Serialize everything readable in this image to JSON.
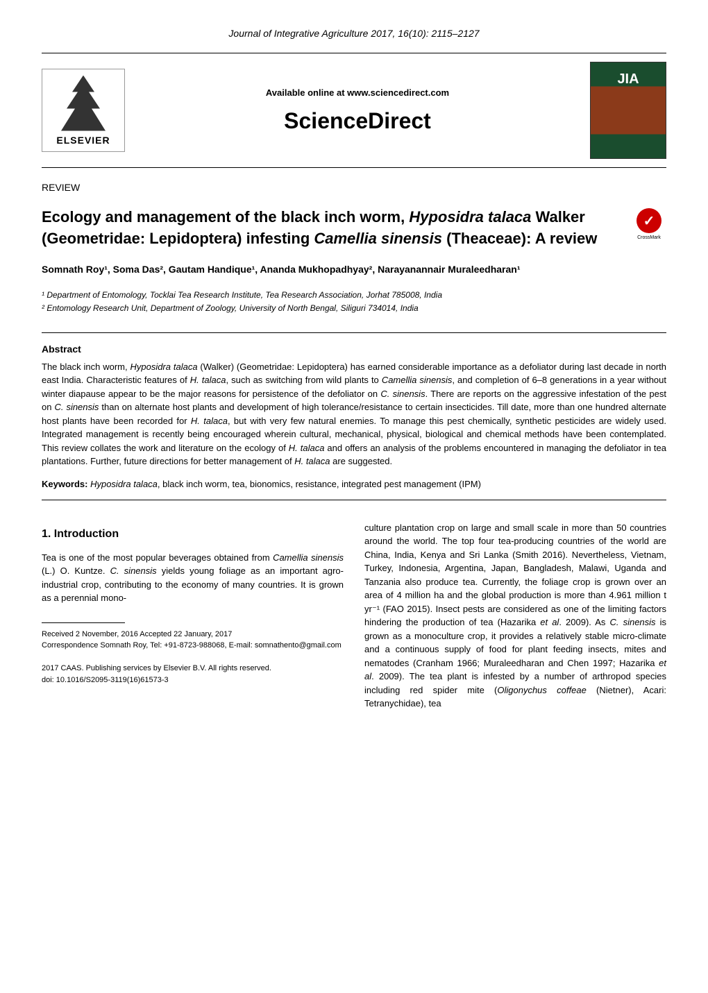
{
  "journal_header": "Journal of Integrative Agriculture  2017, 16(10): 2115–2127",
  "header": {
    "elsevier": "ELSEVIER",
    "available_online": "Available online at www.sciencedirect.com",
    "sciencedirect": "ScienceDirect",
    "jia": "JIA"
  },
  "review_label": "REVIEW",
  "title_parts": {
    "p1": "Ecology and management of the black inch worm, ",
    "p2": "Hyposidra talaca",
    "p3": " Walker (Geometridae: Lepidoptera) infesting ",
    "p4": "Camellia sinensis",
    "p5": " (Theaceae): A review"
  },
  "crossmark_label": "CrossMark",
  "authors": "Somnath Roy¹, Soma Das², Gautam Handique¹, Ananda Mukhopadhyay², Narayanannair Muraleedharan¹",
  "affiliations": {
    "a1": "¹ Department of Entomology, Tocklai Tea Research Institute, Tea Research Association, Jorhat 785008, India",
    "a2": "² Entomology Research Unit, Department of Zoology, University of North Bengal, Siliguri 734014, India"
  },
  "abstract": {
    "label": "Abstract",
    "text_parts": {
      "p1": "The black inch worm, ",
      "p2": "Hyposidra talaca",
      "p3": " (Walker) (Geometridae: Lepidoptera) has earned considerable importance as a defoliator during last decade in north east India. Characteristic features of ",
      "p4": "H. talaca",
      "p5": ", such as switching from wild plants to ",
      "p6": "Camellia sinensis",
      "p7": ", and completion of 6–8 generations in a year without winter diapause appear to be the major reasons for persistence of the defoliator on ",
      "p8": "C. sinensis",
      "p9": ". There are reports on the aggressive infestation of the pest on ",
      "p10": "C. sinensis",
      "p11": " than on alternate host plants and development of high tolerance/resistance to certain insecticides. Till date, more than one hundred alternate host plants have been recorded for ",
      "p12": "H. talaca",
      "p13": ", but with very few natural enemies. To manage this pest chemically, synthetic pesticides are widely used. Integrated management is recently being encouraged wherein cultural, mechanical, physical, biological and chemical methods have been contemplated. This review collates the work and literature on the ecology of ",
      "p14": "H. talaca",
      "p15": " and offers an analysis of the problems encountered in managing the defoliator in tea plantations. Further, future directions for better management of ",
      "p16": "H. talaca",
      "p17": " are suggested."
    }
  },
  "keywords": {
    "label": "Keywords: ",
    "text": "Hyposidra talaca",
    "text2": ", black inch worm, tea, bionomics, resistance, integrated pest management (IPM)"
  },
  "section1": {
    "heading": "1. Introduction",
    "left_text_parts": {
      "p1": "Tea is one of the most popular beverages obtained from ",
      "p2": "Camellia sinensis",
      "p3": " (L.) O. Kuntze. ",
      "p4": "C. sinensis",
      "p5": " yields young foliage as an important agro-industrial crop, contributing to the economy of many countries. It is grown as a perennial mono-"
    },
    "right_text_parts": {
      "p1": "culture plantation crop on large and small scale in more than 50 countries around the world. The top four tea-producing countries of the world are China, India, Kenya and Sri Lanka (Smith 2016). Nevertheless, Vietnam, Turkey, Indonesia, Argentina, Japan, Bangladesh, Malawi, Uganda and Tanzania also produce tea. Currently, the foliage crop is grown over an area of 4 million ha and the global production is more than 4.961 million t yr⁻¹ (FAO 2015). Insect pests are considered as one of the limiting factors hindering the production of tea (Hazarika ",
      "p2": "et al",
      "p3": ". 2009). As ",
      "p4": "C. sinensis",
      "p5": " is grown as a monoculture crop, it provides a relatively stable micro-climate and a continuous supply of food for plant feeding insects, mites and nematodes (Cranham 1966; Muraleedharan and Chen 1997; Hazarika ",
      "p6": "et al",
      "p7": ". 2009). The tea plant is infested by a number of arthropod species including red spider mite (",
      "p8": "Oligonychus coffeae",
      "p9": " (Nietner), Acari: Tetranychidae), tea"
    }
  },
  "footer": {
    "received": "Received 2 November, 2016   Accepted 22 January, 2017",
    "correspondence": "Correspondence Somnath Roy, Tel: +91-8723-988068, E-mail: somnathento@gmail.com",
    "copyright": "2017 CAAS. Publishing services by Elsevier B.V. All rights reserved.",
    "doi": "doi: 10.1016/S2095-3119(16)61573-3"
  }
}
